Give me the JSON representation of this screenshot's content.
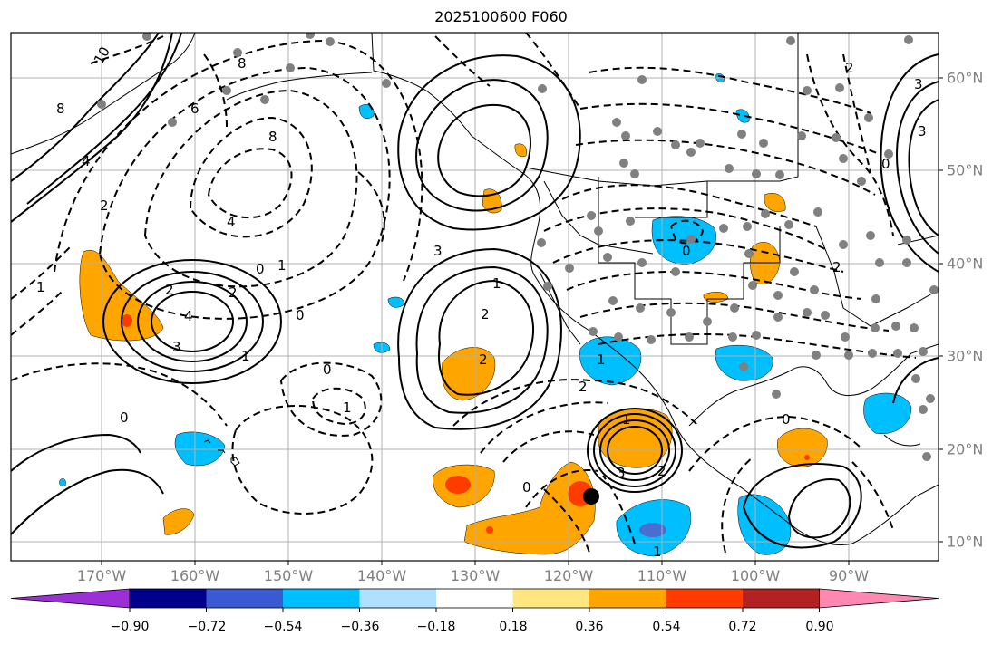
{
  "title": "2025100600 F060",
  "map": {
    "lon_labels": [
      "170°W",
      "160°W",
      "150°W",
      "140°W",
      "130°W",
      "120°W",
      "110°W",
      "100°W",
      "90°W"
    ],
    "lat_labels": [
      "60°N",
      "50°N",
      "40°N",
      "30°N",
      "20°N",
      "10°N"
    ],
    "contour_labels": [
      "10",
      "8",
      "8",
      "6",
      "4",
      "4",
      "8",
      "1",
      "0",
      "4",
      "3",
      "2",
      "2",
      "1",
      "0",
      "1",
      "2",
      "1",
      "2",
      "2",
      "3",
      "0",
      "0",
      "0",
      "1",
      "1",
      "2",
      "2",
      "1",
      "3",
      "0",
      "2",
      "0",
      "3",
      "2",
      "0",
      "1",
      "3"
    ],
    "field_colors": {
      "orange": "#ffa500",
      "red_orange": "#ff3c00",
      "blue": "#00bfff",
      "dark_blue": "#4a6ecf",
      "grid": "#b0b0b0"
    }
  },
  "colorbar": {
    "tick_labels": [
      "−0.90",
      "−0.72",
      "−0.54",
      "−0.36",
      "−0.18",
      "0.18",
      "0.36",
      "0.54",
      "0.72",
      "0.90"
    ],
    "colors": [
      "#9b30d6",
      "#00008b",
      "#3a5ad1",
      "#00bfff",
      "#b0e0ff",
      "#ffffff",
      "#ffe680",
      "#ffa500",
      "#ff3c00",
      "#b22222",
      "#ff88b0"
    ]
  }
}
